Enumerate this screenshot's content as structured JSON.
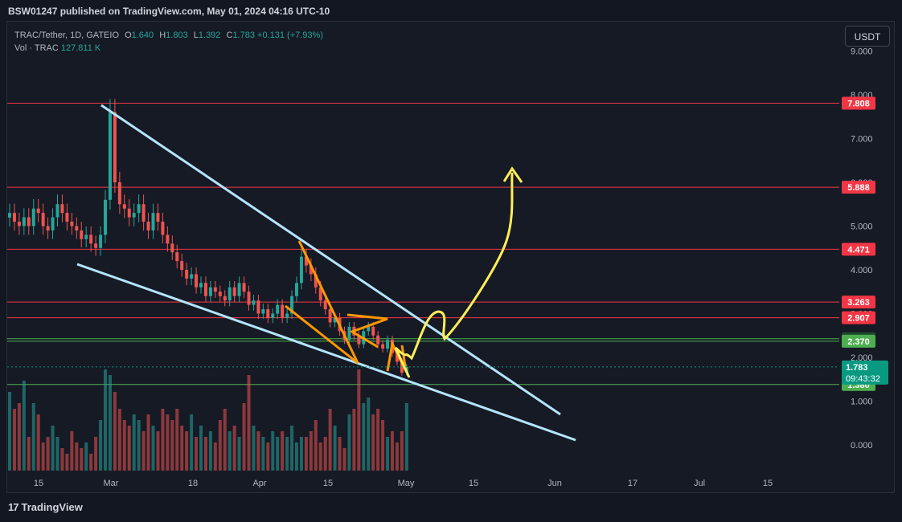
{
  "header": {
    "publisher_text": "BSW01247 published on TradingView.com, May 01, 2024 04:16 UTC-10"
  },
  "legend": {
    "symbol": "TRAC/Tether, 1D, GATEIO",
    "o_label": "O",
    "o": "1.640",
    "h_label": "H",
    "h": "1.803",
    "l_label": "L",
    "l": "1.392",
    "c_label": "C",
    "c": "1.783",
    "change": "+0.131 (+7.93%)",
    "vol_label": "Vol · TRAC",
    "vol": "127.811 K"
  },
  "currency_button": "USDT",
  "footer": {
    "logo_text": "TradingView",
    "logo_mark": "17"
  },
  "chart_data": {
    "type": "candlestick",
    "symbol": "TRAC/Tether",
    "interval": "1D",
    "exchange": "GATEIO",
    "y_axis": {
      "ticks": [
        0.0,
        1.0,
        2.0,
        3.0,
        4.0,
        5.0,
        6.0,
        7.0,
        8.0,
        9.0
      ],
      "tick_labels": [
        "0.000",
        "1.000",
        "2.000",
        "3.000",
        "4.000",
        "5.000",
        "6.000",
        "7.000",
        "8.000",
        "9.000"
      ]
    },
    "x_axis": {
      "tick_labels": [
        "15",
        "Mar",
        "18",
        "Apr",
        "15",
        "May",
        "15",
        "Jun",
        "17",
        "Jul",
        "15"
      ]
    },
    "horizontal_levels": [
      {
        "value": 7.808,
        "label": "7.808",
        "color": "#f23645"
      },
      {
        "value": 5.888,
        "label": "5.888",
        "color": "#f23645"
      },
      {
        "value": 4.471,
        "label": "4.471",
        "color": "#f23645"
      },
      {
        "value": 3.263,
        "label": "3.263",
        "color": "#f23645"
      },
      {
        "value": 2.907,
        "label": "2.907",
        "color": "#f23645"
      },
      {
        "value": 2.426,
        "label": "2.426",
        "color": "#1e4d2b"
      },
      {
        "value": 2.37,
        "label": "2.370",
        "color": "#4caf50"
      },
      {
        "value": 1.38,
        "label": "1.380",
        "color": "#4caf50"
      }
    ],
    "current_price": {
      "value": 1.783,
      "label": "1.783",
      "countdown": "09:43:32",
      "color": "#089981"
    },
    "closes": [
      5.3,
      5.1,
      5.0,
      5.2,
      5.0,
      5.4,
      5.3,
      5.0,
      4.9,
      5.2,
      5.5,
      5.3,
      5.1,
      5.0,
      4.9,
      4.7,
      4.8,
      4.6,
      4.5,
      4.8,
      5.6,
      7.6,
      6.0,
      5.5,
      5.4,
      5.2,
      5.3,
      5.5,
      5.1,
      4.9,
      5.3,
      5.1,
      4.8,
      4.6,
      4.4,
      4.2,
      4.0,
      3.8,
      3.9,
      3.6,
      3.7,
      3.4,
      3.6,
      3.5,
      3.4,
      3.3,
      3.6,
      3.4,
      3.7,
      3.5,
      3.2,
      3.3,
      3.0,
      3.1,
      2.9,
      3.0,
      3.2,
      2.9,
      3.0,
      3.4,
      3.7,
      4.3,
      4.1,
      3.9,
      3.6,
      3.3,
      3.1,
      2.8,
      2.9,
      2.6,
      2.4,
      2.7,
      2.5,
      2.3,
      2.6,
      2.7,
      2.5,
      2.3,
      2.2,
      2.4,
      2.1,
      1.9,
      1.65,
      1.78
    ],
    "volume_rel": [
      0.7,
      0.55,
      0.6,
      0.8,
      0.3,
      0.6,
      0.5,
      0.25,
      0.3,
      0.4,
      0.3,
      0.2,
      0.15,
      0.35,
      0.25,
      0.2,
      0.25,
      0.15,
      0.3,
      0.45,
      0.9,
      0.85,
      0.7,
      0.55,
      0.45,
      0.4,
      0.5,
      0.45,
      0.35,
      0.5,
      0.4,
      0.35,
      0.55,
      0.5,
      0.45,
      0.55,
      0.4,
      0.35,
      0.5,
      0.3,
      0.4,
      0.3,
      0.35,
      0.25,
      0.45,
      0.55,
      0.35,
      0.4,
      0.3,
      0.6,
      0.85,
      0.4,
      0.35,
      0.3,
      0.25,
      0.35,
      0.3,
      0.35,
      0.3,
      0.4,
      0.25,
      0.3,
      0.3,
      0.35,
      0.45,
      0.25,
      0.3,
      0.55,
      0.4,
      0.3,
      0.2,
      0.5,
      0.55,
      0.9,
      0.6,
      0.65,
      0.5,
      0.55,
      0.45,
      0.3,
      0.35,
      0.25,
      0.35,
      0.6
    ]
  }
}
